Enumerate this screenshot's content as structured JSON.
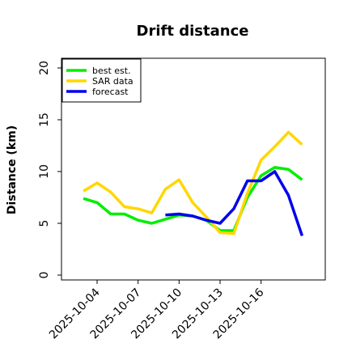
{
  "chart_data": {
    "type": "line",
    "title": "Drift distance",
    "ylabel": "Distance (km)",
    "xlabel": "",
    "ylim": [
      0,
      20
    ],
    "yticks": [
      0,
      5,
      10,
      15,
      20
    ],
    "xticks": [
      "2025-10-04",
      "2025-10-07",
      "2025-10-10",
      "2025-10-13",
      "2025-10-16"
    ],
    "legend_position": "top-left",
    "grid": false,
    "series": [
      {
        "name": "best est.",
        "color": "#00ee00",
        "x": [
          "2025-10-03",
          "2025-10-04",
          "2025-10-05",
          "2025-10-06",
          "2025-10-07",
          "2025-10-08",
          "2025-10-09",
          "2025-10-10",
          "2025-10-11",
          "2025-10-12",
          "2025-10-13",
          "2025-10-14",
          "2025-10-15",
          "2025-10-16",
          "2025-10-17",
          "2025-10-18",
          "2025-10-19"
        ],
        "values": [
          7.4,
          7.0,
          5.9,
          5.9,
          5.3,
          5.0,
          5.4,
          5.8,
          5.7,
          5.3,
          4.3,
          4.3,
          7.5,
          9.6,
          10.4,
          10.2,
          9.2
        ]
      },
      {
        "name": "SAR data",
        "color": "#ffd700",
        "x": [
          "2025-10-03",
          "2025-10-04",
          "2025-10-05",
          "2025-10-06",
          "2025-10-07",
          "2025-10-08",
          "2025-10-09",
          "2025-10-10",
          "2025-10-11",
          "2025-10-12",
          "2025-10-13",
          "2025-10-14",
          "2025-10-15",
          "2025-10-16",
          "2025-10-17",
          "2025-10-18",
          "2025-10-19"
        ],
        "values": [
          8.1,
          8.9,
          8.0,
          6.6,
          6.4,
          6.0,
          8.3,
          9.2,
          7.0,
          5.6,
          4.1,
          4.0,
          7.9,
          11.1,
          12.4,
          13.8,
          12.6
        ]
      },
      {
        "name": "forecast",
        "color": "#0000ee",
        "x": [
          "2025-10-09",
          "2025-10-10",
          "2025-10-11",
          "2025-10-12",
          "2025-10-13",
          "2025-10-14",
          "2025-10-15",
          "2025-10-16",
          "2025-10-17",
          "2025-10-18",
          "2025-10-19"
        ],
        "values": [
          5.8,
          5.9,
          5.7,
          5.3,
          5.0,
          6.4,
          9.1,
          9.1,
          10.0,
          7.7,
          3.8
        ]
      }
    ]
  }
}
